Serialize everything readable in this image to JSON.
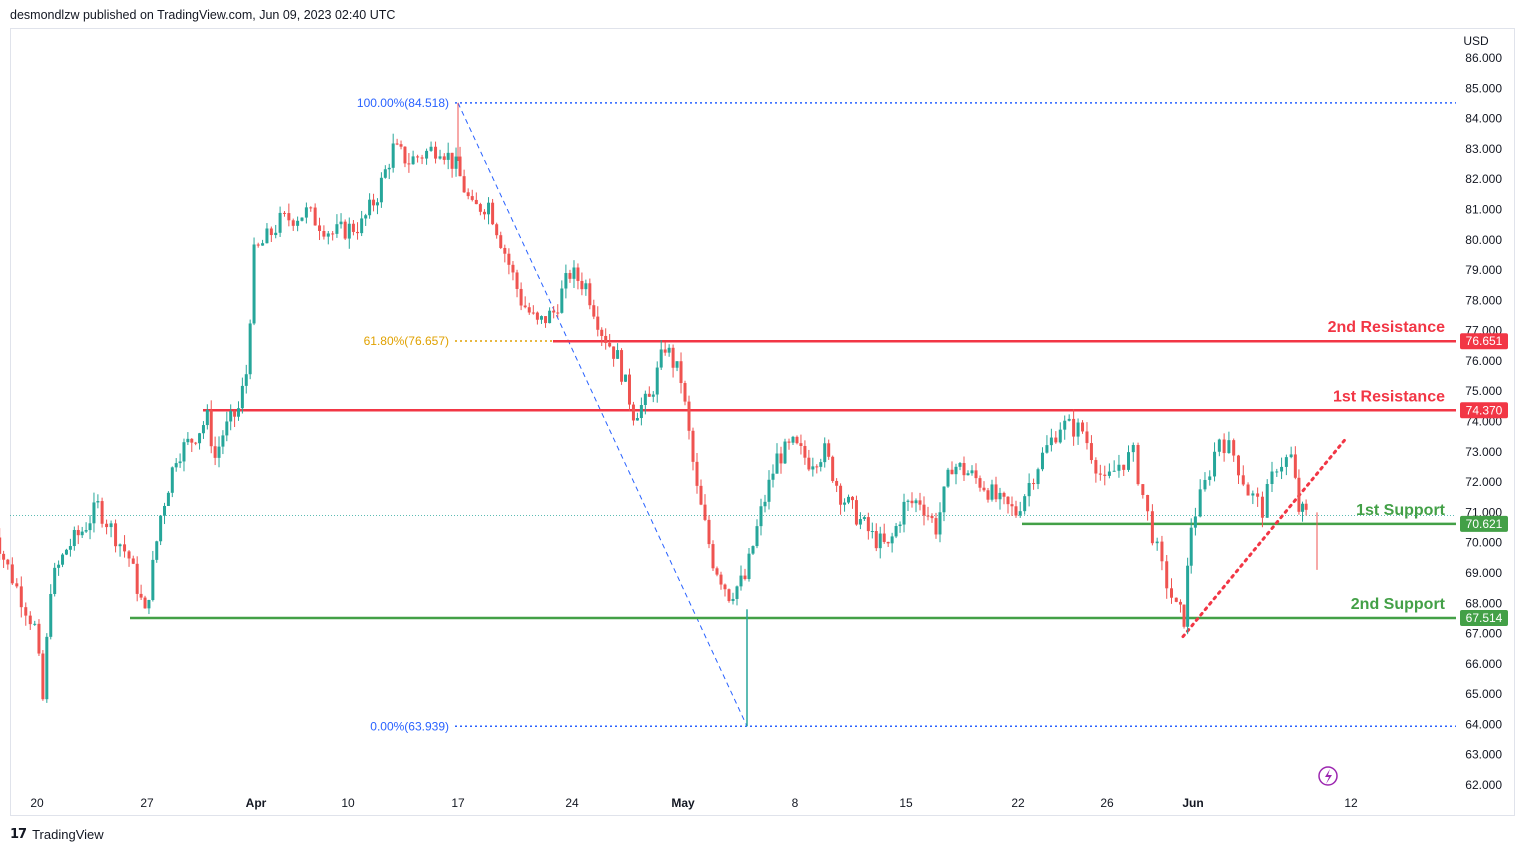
{
  "header": {
    "published_by": "desmondlzw published on TradingView.com, Jun 09, 2023 02:40 UTC"
  },
  "footer": {
    "logo_text": "17",
    "brand": "TradingView"
  },
  "colors": {
    "up": "#26a69a",
    "down": "#ef5350",
    "resistance": "#f23645",
    "support": "#43a047",
    "fib_blue": "#2962ff",
    "fib_gold": "#e0a100",
    "trend_dotted": "#f23645"
  },
  "chart_data": {
    "type": "candlestick",
    "currency": "USD",
    "y_axis": {
      "unit": "USD",
      "ticks": [
        "86.000",
        "85.000",
        "84.000",
        "83.000",
        "82.000",
        "81.000",
        "80.000",
        "79.000",
        "78.000",
        "77.000",
        "76.000",
        "75.000",
        "74.000",
        "73.000",
        "72.000",
        "71.000",
        "70.000",
        "69.000",
        "68.000",
        "67.000",
        "66.000",
        "65.000",
        "64.000",
        "63.000",
        "62.000"
      ],
      "ylim": [
        62,
        86
      ]
    },
    "x_axis": {
      "ticks": [
        {
          "label": "20",
          "date": "2023-03-20",
          "bold": false
        },
        {
          "label": "27",
          "date": "2023-03-27",
          "bold": false
        },
        {
          "label": "Apr",
          "date": "2023-04-03",
          "bold": true
        },
        {
          "label": "10",
          "date": "2023-04-10",
          "bold": false
        },
        {
          "label": "17",
          "date": "2023-04-17",
          "bold": false
        },
        {
          "label": "24",
          "date": "2023-04-24",
          "bold": false
        },
        {
          "label": "May",
          "date": "2023-05-01",
          "bold": true
        },
        {
          "label": "8",
          "date": "2023-05-08",
          "bold": false
        },
        {
          "label": "15",
          "date": "2023-05-15",
          "bold": false
        },
        {
          "label": "22",
          "date": "2023-05-22",
          "bold": false
        },
        {
          "label": "26",
          "date": "2023-05-26",
          "bold": false
        },
        {
          "label": "Jun",
          "date": "2023-06-01",
          "bold": true
        },
        {
          "label": "12",
          "date": "2023-06-12",
          "bold": false
        }
      ]
    },
    "price_path": [
      {
        "date": "2023-03-17",
        "close": 71.2
      },
      {
        "date": "2023-03-18",
        "close": 69.5
      },
      {
        "date": "2023-03-20",
        "close": 67.2
      },
      {
        "date": "2023-03-20T12",
        "close": 64.8
      },
      {
        "date": "2023-03-21",
        "close": 68.6
      },
      {
        "date": "2023-03-22",
        "close": 69.8
      },
      {
        "date": "2023-03-23",
        "close": 70.4
      },
      {
        "date": "2023-03-24",
        "close": 71.2
      },
      {
        "date": "2023-03-26",
        "close": 69.5
      },
      {
        "date": "2023-03-27",
        "close": 67.6
      },
      {
        "date": "2023-03-27T12",
        "close": 69.2
      },
      {
        "date": "2023-03-28",
        "close": 70.9
      },
      {
        "date": "2023-03-29",
        "close": 72.9
      },
      {
        "date": "2023-03-30",
        "close": 73.4
      },
      {
        "date": "2023-03-31",
        "close": 74.1
      },
      {
        "date": "2023-03-31T12",
        "close": 72.8
      },
      {
        "date": "2023-04-01",
        "close": 73.6
      },
      {
        "date": "2023-04-02",
        "close": 74.4
      },
      {
        "date": "2023-04-02T12",
        "close": 75.6
      },
      {
        "date": "2023-04-03",
        "close": 79.5
      },
      {
        "date": "2023-04-05",
        "close": 80.6
      },
      {
        "date": "2023-04-07",
        "close": 80.9
      },
      {
        "date": "2023-04-09",
        "close": 80.2
      },
      {
        "date": "2023-04-11",
        "close": 80.5
      },
      {
        "date": "2023-04-12",
        "close": 81.5
      },
      {
        "date": "2023-04-13",
        "close": 83.0
      },
      {
        "date": "2023-04-14",
        "close": 82.6
      },
      {
        "date": "2023-04-16",
        "close": 83.1
      },
      {
        "date": "2023-04-17",
        "close": 82.4
      },
      {
        "date": "2023-04-18",
        "close": 81.0
      },
      {
        "date": "2023-04-19",
        "close": 81.2
      },
      {
        "date": "2023-04-20",
        "close": 79.6
      },
      {
        "date": "2023-04-21",
        "close": 78.0
      },
      {
        "date": "2023-04-22",
        "close": 77.2
      },
      {
        "date": "2023-04-23",
        "close": 77.6
      },
      {
        "date": "2023-04-24",
        "close": 78.9
      },
      {
        "date": "2023-04-25",
        "close": 78.5
      },
      {
        "date": "2023-04-26",
        "close": 77.0
      },
      {
        "date": "2023-04-27",
        "close": 76.1
      },
      {
        "date": "2023-04-28",
        "close": 74.3
      },
      {
        "date": "2023-04-29",
        "close": 74.7
      },
      {
        "date": "2023-04-30",
        "close": 76.5
      },
      {
        "date": "2023-05-01",
        "close": 75.4
      },
      {
        "date": "2023-05-02",
        "close": 71.7
      },
      {
        "date": "2023-05-03",
        "close": 69.4
      },
      {
        "date": "2023-05-04",
        "close": 68.3
      },
      {
        "date": "2023-05-05",
        "close": 68.8
      },
      {
        "date": "2023-05-06",
        "close": 71.0
      },
      {
        "date": "2023-05-07",
        "close": 72.8
      },
      {
        "date": "2023-05-08",
        "close": 73.2
      },
      {
        "date": "2023-05-09",
        "close": 72.7
      },
      {
        "date": "2023-05-10",
        "close": 73.0
      },
      {
        "date": "2023-05-11",
        "close": 71.6
      },
      {
        "date": "2023-05-12",
        "close": 70.9
      },
      {
        "date": "2023-05-13",
        "close": 70.2
      },
      {
        "date": "2023-05-14",
        "close": 69.8
      },
      {
        "date": "2023-05-15",
        "close": 71.2
      },
      {
        "date": "2023-05-16",
        "close": 71.4
      },
      {
        "date": "2023-05-17",
        "close": 70.5
      },
      {
        "date": "2023-05-18",
        "close": 72.6
      },
      {
        "date": "2023-05-19",
        "close": 72.3
      },
      {
        "date": "2023-05-20",
        "close": 71.9
      },
      {
        "date": "2023-05-21",
        "close": 71.3
      },
      {
        "date": "2023-05-22",
        "close": 71.0
      },
      {
        "date": "2023-05-23",
        "close": 72.6
      },
      {
        "date": "2023-05-24",
        "close": 73.9
      },
      {
        "date": "2023-05-25",
        "close": 73.7
      },
      {
        "date": "2023-05-26",
        "close": 71.9
      },
      {
        "date": "2023-05-27",
        "close": 72.6
      },
      {
        "date": "2023-05-28",
        "close": 72.9
      },
      {
        "date": "2023-05-29",
        "close": 70.9
      },
      {
        "date": "2023-05-30",
        "close": 69.1
      },
      {
        "date": "2023-05-31",
        "close": 67.8
      },
      {
        "date": "2023-05-31T12",
        "close": 67.5
      },
      {
        "date": "2023-06-01",
        "close": 70.6
      },
      {
        "date": "2023-06-02",
        "close": 71.9
      },
      {
        "date": "2023-06-03",
        "close": 73.5
      },
      {
        "date": "2023-06-04",
        "close": 72.9
      },
      {
        "date": "2023-06-05",
        "close": 71.7
      },
      {
        "date": "2023-06-06",
        "close": 71.1
      },
      {
        "date": "2023-06-07",
        "close": 72.6
      },
      {
        "date": "2023-06-08",
        "close": 72.8
      },
      {
        "date": "2023-06-08T12",
        "close": 71.1
      },
      {
        "date": "2023-06-09",
        "close": 70.9
      }
    ],
    "levels": [
      {
        "name": "2nd Resistance",
        "value": 76.651,
        "label": "76.651",
        "kind": "resistance"
      },
      {
        "name": "1st Resistance",
        "value": 74.37,
        "label": "74.370",
        "kind": "resistance"
      },
      {
        "name": "1st Support",
        "value": 70.621,
        "label": "70.621",
        "kind": "support"
      },
      {
        "name": "2nd Support",
        "value": 67.514,
        "label": "67.514",
        "kind": "support"
      }
    ],
    "fibonacci": [
      {
        "label": "100.00%(84.518)",
        "value": 84.518,
        "color": "blue"
      },
      {
        "label": "61.80%(76.657)",
        "value": 76.657,
        "color": "gold"
      },
      {
        "label": "0.00%(63.939)",
        "value": 63.939,
        "color": "blue"
      }
    ],
    "last_price": 70.9,
    "icon": "lightning-icon"
  }
}
